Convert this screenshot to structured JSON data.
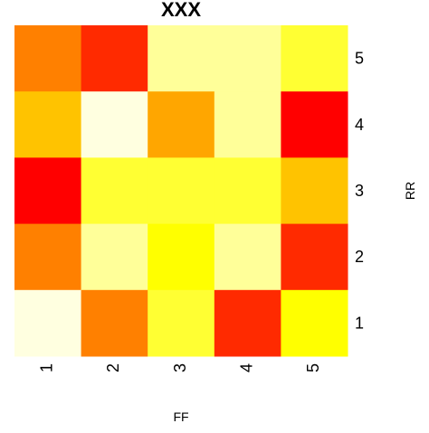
{
  "chart_data": {
    "type": "heatmap",
    "title": "XXX",
    "xlabel": "FF",
    "ylabel": "RR",
    "x_categories": [
      "1",
      "2",
      "3",
      "4",
      "5"
    ],
    "y_categories": [
      "1",
      "2",
      "3",
      "4",
      "5"
    ],
    "color_scale": [
      "#FF0000",
      "#FF2A00",
      "#FF8000",
      "#FFA600",
      "#FFC300",
      "#FFFF00",
      "#FFFF33",
      "#FFFF99",
      "#FFFFE0"
    ],
    "cells": [
      {
        "x": "1",
        "y": "5",
        "color": "#FF8000"
      },
      {
        "x": "2",
        "y": "5",
        "color": "#FF2A00"
      },
      {
        "x": "3",
        "y": "5",
        "color": "#FFFF99"
      },
      {
        "x": "4",
        "y": "5",
        "color": "#FFFF99"
      },
      {
        "x": "5",
        "y": "5",
        "color": "#FFFF33"
      },
      {
        "x": "1",
        "y": "4",
        "color": "#FFC300"
      },
      {
        "x": "2",
        "y": "4",
        "color": "#FFFFE0"
      },
      {
        "x": "3",
        "y": "4",
        "color": "#FFA600"
      },
      {
        "x": "4",
        "y": "4",
        "color": "#FFFF99"
      },
      {
        "x": "5",
        "y": "4",
        "color": "#FF0000"
      },
      {
        "x": "1",
        "y": "3",
        "color": "#FF0000"
      },
      {
        "x": "2",
        "y": "3",
        "color": "#FFFF33"
      },
      {
        "x": "3",
        "y": "3",
        "color": "#FFFF33"
      },
      {
        "x": "4",
        "y": "3",
        "color": "#FFFF33"
      },
      {
        "x": "5",
        "y": "3",
        "color": "#FFC300"
      },
      {
        "x": "1",
        "y": "2",
        "color": "#FF8000"
      },
      {
        "x": "2",
        "y": "2",
        "color": "#FFFF99"
      },
      {
        "x": "3",
        "y": "2",
        "color": "#FFFF00"
      },
      {
        "x": "4",
        "y": "2",
        "color": "#FFFF99"
      },
      {
        "x": "5",
        "y": "2",
        "color": "#FF2A00"
      },
      {
        "x": "1",
        "y": "1",
        "color": "#FFFFE0"
      },
      {
        "x": "2",
        "y": "1",
        "color": "#FF8000"
      },
      {
        "x": "3",
        "y": "1",
        "color": "#FFFF33"
      },
      {
        "x": "4",
        "y": "1",
        "color": "#FF2A00"
      },
      {
        "x": "5",
        "y": "1",
        "color": "#FFFF00"
      }
    ],
    "grid": false,
    "legend": "none"
  }
}
